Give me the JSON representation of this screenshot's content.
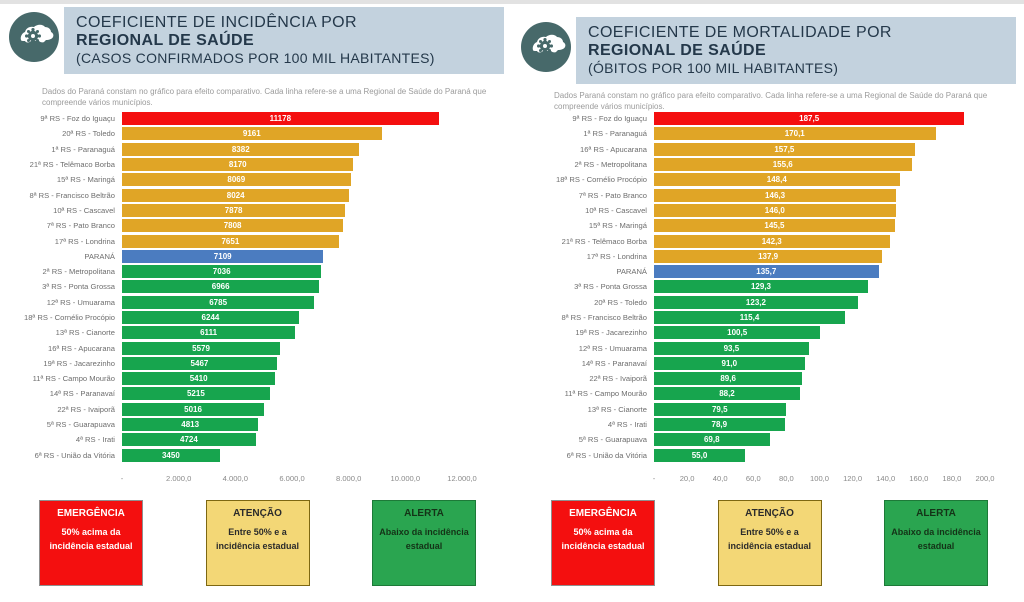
{
  "colors": {
    "red": "#f40f0f",
    "yellow": "#e0a526",
    "blue": "#4b7cc0",
    "green": "#17a54e",
    "band": "#c3d2de",
    "headtext": "#24384a",
    "icon_bg": "#47696a"
  },
  "panels": [
    {
      "title_line1": "COEFICIENTE DE INCIDÊNCIA POR",
      "title_line2": "REGIONAL DE SAÚDE",
      "title_line3": "(CASOS CONFIRMADOS POR 100 MIL HABITANTES)",
      "note": "Dados do Paraná constam no gráfico para efeito comparativo. Cada linha refere-se a uma Regional de Saúde do Paraná que compreende vários municípios.",
      "legend": [
        {
          "title": "EMERGÊNCIA",
          "text": "50% acima da incidência estadual",
          "status": "red"
        },
        {
          "title": "ATENÇÃO",
          "text": "Entre 50% e a incidência estadual",
          "status": "yellow"
        },
        {
          "title": "ALERTA",
          "text": "Abaixo da incidência estadual",
          "status": "green"
        }
      ]
    },
    {
      "title_line1": "COEFICIENTE DE MORTALIDADE POR",
      "title_line2": "REGIONAL DE SAÚDE",
      "title_line3": "(ÓBITOS POR 100 MIL HABITANTES)",
      "note": "Dados Paraná constam no gráfico para efeito comparativo. Cada linha refere-se a uma Regional de Saúde do Paraná que compreende vários municípios.",
      "legend": [
        {
          "title": "EMERGÊNCIA",
          "text": "50% acima da incidência estadual",
          "status": "red"
        },
        {
          "title": "ATENÇÃO",
          "text": "Entre 50% e a incidência estadual",
          "status": "yellow"
        },
        {
          "title": "ALERTA",
          "text": "Abaixo da incidência estadual",
          "status": "green"
        }
      ]
    }
  ],
  "chart_data": [
    {
      "type": "bar",
      "orientation": "horizontal",
      "title": "Coeficiente de incidência por Regional de Saúde (casos confirmados por 100 mil habitantes)",
      "xlim": [
        0,
        12000
      ],
      "grid": false,
      "tick_labels": [
        "-",
        "2.000,0",
        "4.000,0",
        "6.000,0",
        "8.000,0",
        "10.000,0",
        "12.000,0"
      ],
      "tick_values": [
        0,
        2000,
        4000,
        6000,
        8000,
        10000,
        12000
      ],
      "categories": [
        "9ª RS - Foz do Iguaçu",
        "20ª RS - Toledo",
        "1ª RS - Paranaguá",
        "21ª RS - Telêmaco Borba",
        "15ª RS - Maringá",
        "8ª RS - Francisco Beltrão",
        "10ª RS - Cascavel",
        "7ª RS - Pato Branco",
        "17ª RS - Londrina",
        "PARANÁ",
        "2ª RS - Metropolitana",
        "3ª RS - Ponta Grossa",
        "12ª RS - Umuarama",
        "18ª RS - Cornélio Procópio",
        "13ª RS - Cianorte",
        "16ª RS - Apucarana",
        "19ª RS - Jacarezinho",
        "11ª RS - Campo Mourão",
        "14ª RS - Paranavaí",
        "22ª RS - Ivaiporã",
        "5ª RS - Guarapuava",
        "4ª RS - Irati",
        "6ª RS - União da Vitória"
      ],
      "values": [
        11178,
        9161,
        8382,
        8170,
        8069,
        8024,
        7878,
        7808,
        7651,
        7109,
        7036,
        6966,
        6785,
        6244,
        6111,
        5579,
        5467,
        5410,
        5215,
        5016,
        4813,
        4724,
        3450
      ],
      "value_labels": [
        "11178",
        "9161",
        "8382",
        "8170",
        "8069",
        "8024",
        "7878",
        "7808",
        "7651",
        "7109",
        "7036",
        "6966",
        "6785",
        "6244",
        "6111",
        "5579",
        "5467",
        "5410",
        "5215",
        "5016",
        "4813",
        "4724",
        "3450"
      ],
      "statuses": [
        "red",
        "yellow",
        "yellow",
        "yellow",
        "yellow",
        "yellow",
        "yellow",
        "yellow",
        "yellow",
        "blue",
        "green",
        "green",
        "green",
        "green",
        "green",
        "green",
        "green",
        "green",
        "green",
        "green",
        "green",
        "green",
        "green"
      ]
    },
    {
      "type": "bar",
      "orientation": "horizontal",
      "title": "Coeficiente de mortalidade por Regional de Saúde (óbitos por 100 mil habitantes)",
      "xlim": [
        0,
        200
      ],
      "grid": false,
      "tick_labels": [
        "-",
        "20,0",
        "40,0",
        "60,0",
        "80,0",
        "100,0",
        "120,0",
        "140,0",
        "160,0",
        "180,0",
        "200,0"
      ],
      "tick_values": [
        0,
        20,
        40,
        60,
        80,
        100,
        120,
        140,
        160,
        180,
        200
      ],
      "categories": [
        "9ª RS - Foz do Iguaçu",
        "1ª RS - Paranaguá",
        "16ª RS - Apucarana",
        "2ª RS - Metropolitana",
        "18ª RS - Cornélio Procópio",
        "7ª RS - Pato Branco",
        "10ª RS - Cascavel",
        "15ª RS - Maringá",
        "21ª RS - Telêmaco Borba",
        "17ª RS - Londrina",
        "PARANÁ",
        "3ª RS - Ponta Grossa",
        "20ª RS - Toledo",
        "8ª RS - Francisco Beltrão",
        "19ª RS - Jacarezinho",
        "12ª RS - Umuarama",
        "14ª RS - Paranavaí",
        "22ª RS - Ivaiporã",
        "11ª RS - Campo Mourão",
        "13ª RS - Cianorte",
        "4ª RS - Irati",
        "5ª RS - Guarapuava",
        "6ª RS - União da Vitória"
      ],
      "values": [
        187.5,
        170.1,
        157.5,
        155.6,
        148.4,
        146.3,
        146.0,
        145.5,
        142.3,
        137.9,
        135.7,
        129.3,
        123.2,
        115.4,
        100.5,
        93.5,
        91.0,
        89.6,
        88.2,
        79.5,
        78.9,
        69.8,
        55.0
      ],
      "value_labels": [
        "187,5",
        "170,1",
        "157,5",
        "155,6",
        "148,4",
        "146,3",
        "146,0",
        "145,5",
        "142,3",
        "137,9",
        "135,7",
        "129,3",
        "123,2",
        "115,4",
        "100,5",
        "93,5",
        "91,0",
        "89,6",
        "88,2",
        "79,5",
        "78,9",
        "69,8",
        "55,0"
      ],
      "statuses": [
        "red",
        "yellow",
        "yellow",
        "yellow",
        "yellow",
        "yellow",
        "yellow",
        "yellow",
        "yellow",
        "yellow",
        "blue",
        "green",
        "green",
        "green",
        "green",
        "green",
        "green",
        "green",
        "green",
        "green",
        "green",
        "green",
        "green"
      ]
    }
  ]
}
